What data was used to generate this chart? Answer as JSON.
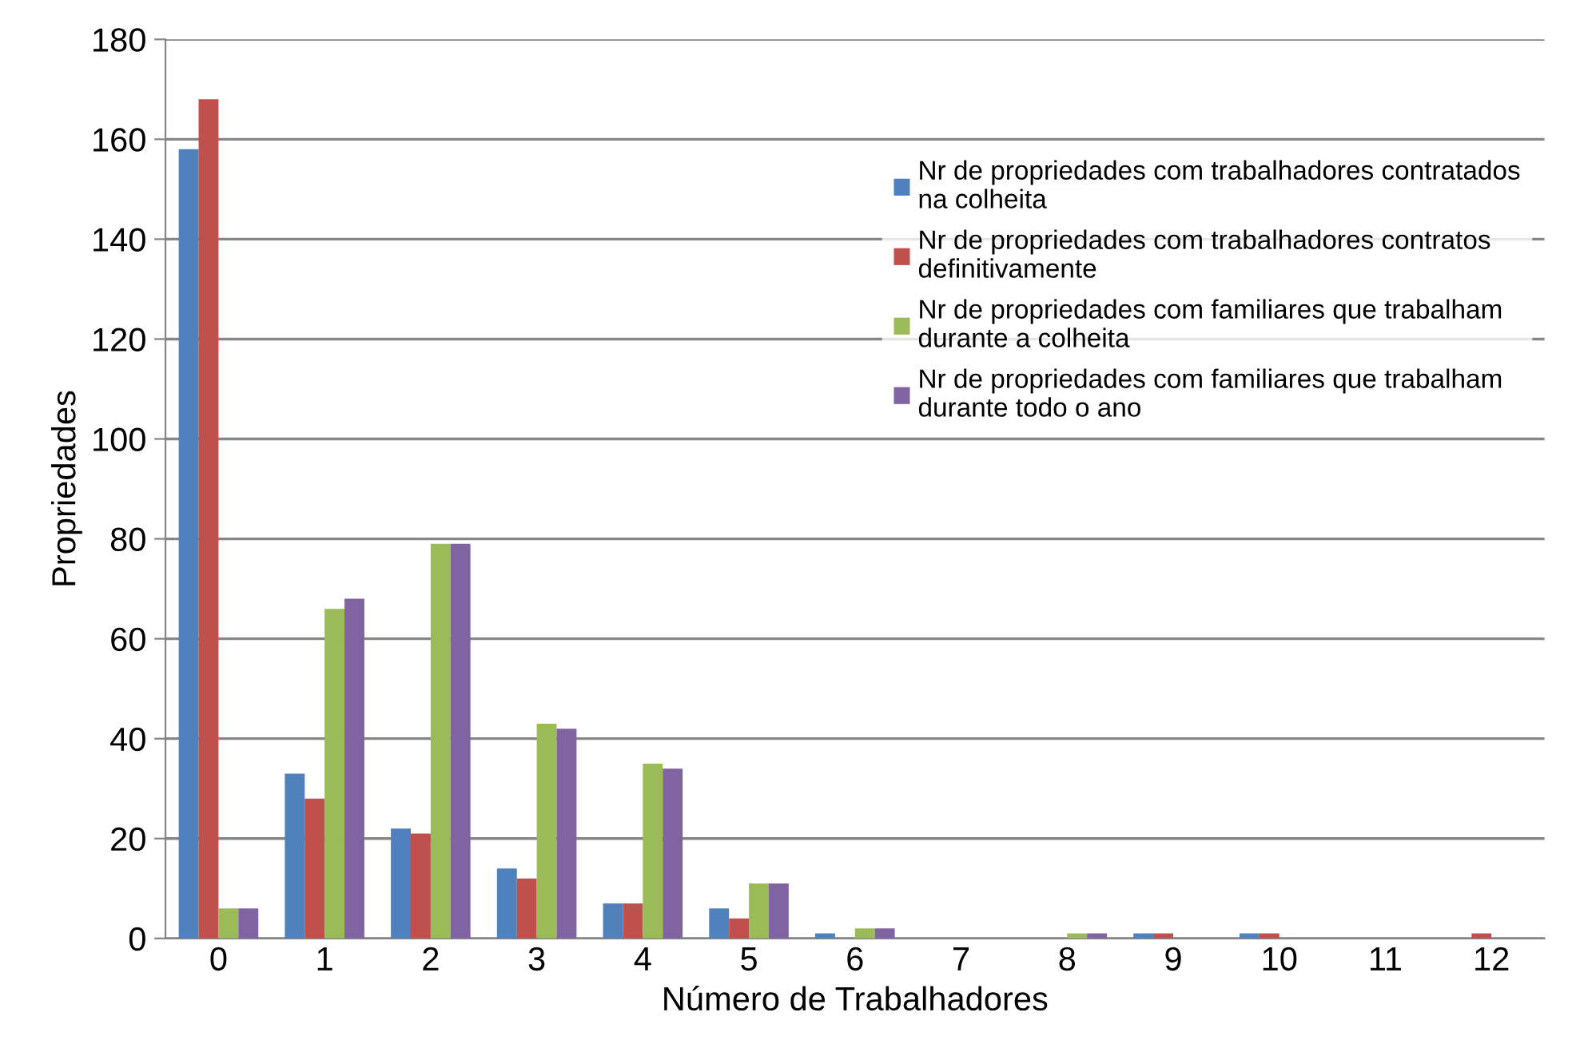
{
  "chart_data": {
    "type": "bar",
    "xlabel": "Número de Trabalhadores",
    "ylabel": "Propriedades",
    "categories": [
      "0",
      "1",
      "2",
      "3",
      "4",
      "5",
      "6",
      "7",
      "8",
      "9",
      "10",
      "11",
      "12"
    ],
    "series": [
      {
        "name": "Nr de propriedades com trabalhadores contratados\nna colheita",
        "color": "#4f81bd",
        "values": [
          158,
          33,
          22,
          14,
          7,
          6,
          1,
          0,
          0,
          1,
          1,
          0,
          0
        ]
      },
      {
        "name": "Nr de propriedades com trabalhadores contratos\ndefinitivamente",
        "color": "#c0504d",
        "values": [
          168,
          28,
          21,
          12,
          7,
          4,
          0,
          0,
          0,
          1,
          1,
          0,
          1
        ]
      },
      {
        "name": "Nr de propriedades com familiares que trabalham\ndurante a colheita",
        "color": "#9bbb59",
        "values": [
          6,
          66,
          79,
          43,
          35,
          11,
          2,
          0,
          1,
          0,
          0,
          0,
          0
        ]
      },
      {
        "name": "Nr de propriedades com familiares que trabalham\ndurante todo o ano",
        "color": "#8064a2",
        "values": [
          6,
          68,
          79,
          42,
          34,
          11,
          2,
          0,
          1,
          0,
          0,
          0,
          0
        ]
      }
    ],
    "ylim": [
      0,
      180
    ],
    "yticks": [
      0,
      20,
      40,
      60,
      80,
      100,
      120,
      140,
      160,
      180
    ],
    "grid": "y",
    "legend": "right"
  }
}
